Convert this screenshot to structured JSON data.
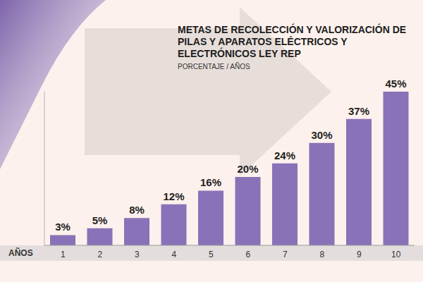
{
  "chart_data": {
    "type": "bar",
    "title": "METAS DE RECOLECCIÓN Y VALORIZACIÓN DE PILAS Y APARATOS ELÉCTRICOS Y ELECTRÓNICOS LEY REP",
    "subtitle": "PORCENTAJE / AÑOS",
    "x_label": "AÑOS",
    "categories": [
      "1",
      "2",
      "3",
      "4",
      "5",
      "6",
      "7",
      "8",
      "9",
      "10"
    ],
    "values": [
      3,
      5,
      8,
      12,
      16,
      20,
      24,
      30,
      37,
      45
    ],
    "value_labels": [
      "3%",
      "5%",
      "8%",
      "12%",
      "16%",
      "20%",
      "24%",
      "30%",
      "37%",
      "45%"
    ],
    "color": "#8a72b8",
    "ylim": [
      0,
      45
    ],
    "data_labels": true,
    "tick_labels": "x",
    "grid": false
  }
}
